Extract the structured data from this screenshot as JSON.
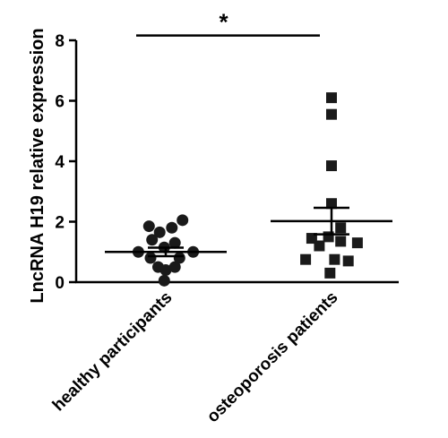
{
  "chart_data": {
    "type": "scatter",
    "ylabel": "LncRNA H19 relative expression",
    "ylim": [
      0,
      8
    ],
    "yticks": [
      0,
      2,
      4,
      6,
      8
    ],
    "categories": [
      "healthy participants",
      "osteoporosis patients"
    ],
    "series": [
      {
        "category": "healthy participants",
        "marker": "circle",
        "points": [
          {
            "offset": -0.55,
            "y": 1.85
          },
          {
            "offset": -0.2,
            "y": 1.65
          },
          {
            "offset": 0.2,
            "y": 1.8
          },
          {
            "offset": 0.55,
            "y": 2.05
          },
          {
            "offset": -0.45,
            "y": 1.4
          },
          {
            "offset": 0.3,
            "y": 1.3
          },
          {
            "offset": -0.05,
            "y": 1.15
          },
          {
            "offset": -0.9,
            "y": 1.0
          },
          {
            "offset": 0.9,
            "y": 1.0
          },
          {
            "offset": -0.5,
            "y": 0.8
          },
          {
            "offset": 0.45,
            "y": 0.8
          },
          {
            "offset": -0.25,
            "y": 0.5
          },
          {
            "offset": 0.0,
            "y": 0.4
          },
          {
            "offset": 0.3,
            "y": 0.5
          },
          {
            "offset": -0.05,
            "y": 0.05
          }
        ],
        "mean": 1.0,
        "sem_low": 0.86,
        "sem_high": 1.14
      },
      {
        "category": "osteoporosis patients",
        "marker": "square",
        "points": [
          {
            "offset": 0.0,
            "y": 6.1
          },
          {
            "offset": 0.0,
            "y": 5.55
          },
          {
            "offset": 0.0,
            "y": 3.85
          },
          {
            "offset": 0.0,
            "y": 2.6
          },
          {
            "offset": 0.3,
            "y": 1.8
          },
          {
            "offset": -0.65,
            "y": 1.45
          },
          {
            "offset": -0.1,
            "y": 1.5
          },
          {
            "offset": 0.3,
            "y": 1.35
          },
          {
            "offset": 0.85,
            "y": 1.3
          },
          {
            "offset": -0.4,
            "y": 1.2
          },
          {
            "offset": -0.85,
            "y": 0.75
          },
          {
            "offset": 0.1,
            "y": 0.75
          },
          {
            "offset": 0.55,
            "y": 0.7
          },
          {
            "offset": -0.05,
            "y": 0.3
          }
        ],
        "mean": 2.02,
        "sem_low": 1.58,
        "sem_high": 2.46
      }
    ],
    "significance": {
      "label": "*",
      "y": 8.1
    }
  },
  "colors": {
    "marker": "#1a1a1a",
    "axis": "#000000"
  }
}
